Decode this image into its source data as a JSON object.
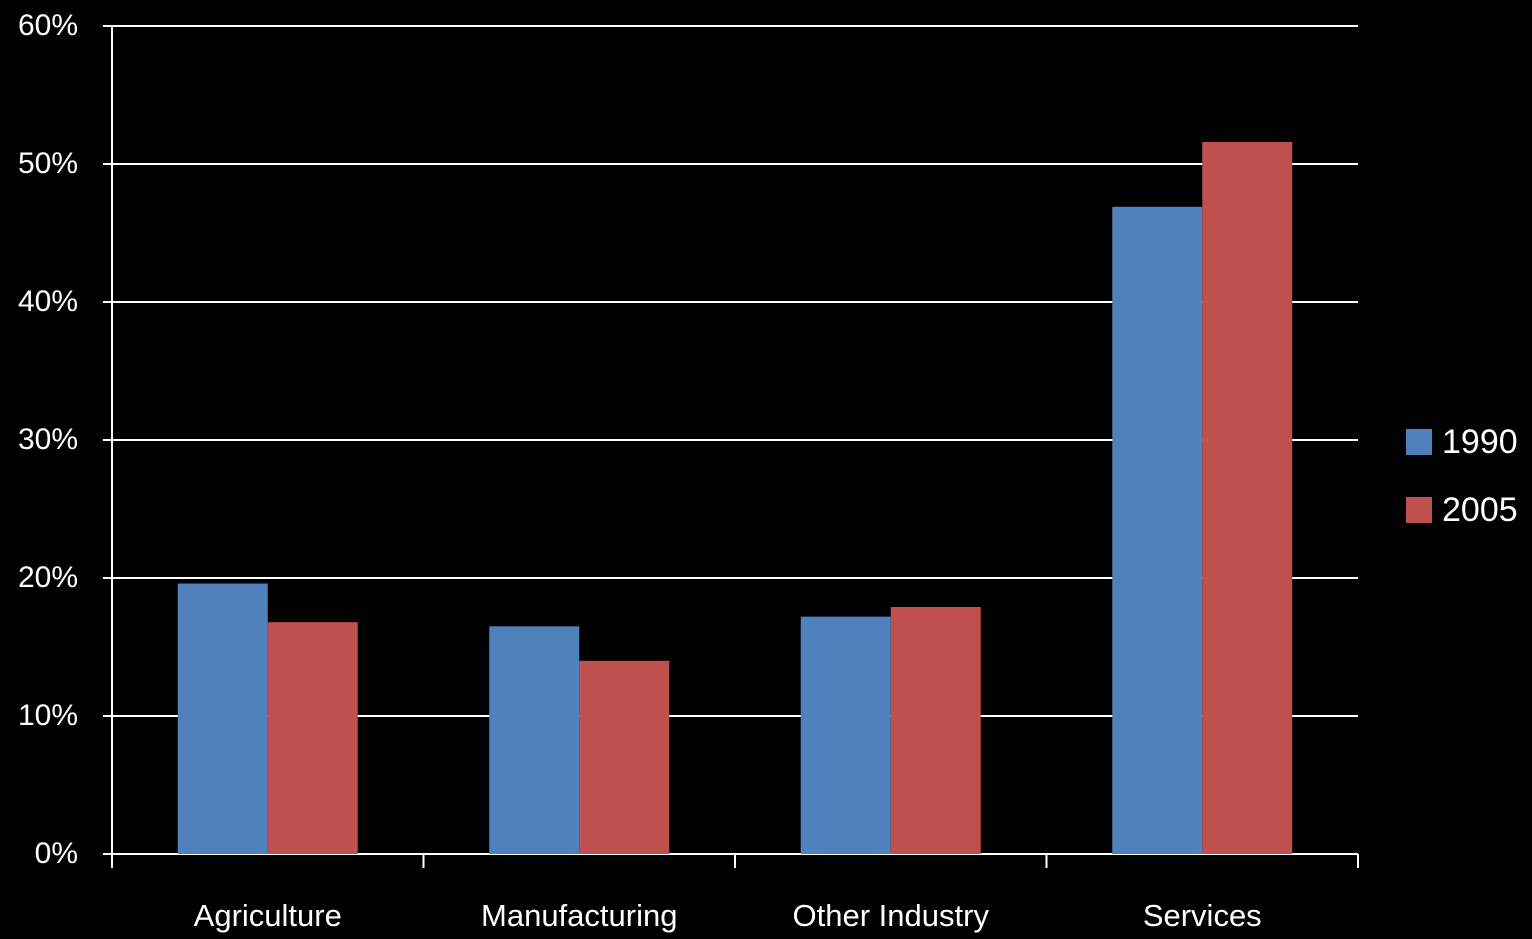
{
  "chart_data": {
    "type": "bar",
    "categories": [
      "Agriculture",
      "Manufacturing",
      "Other Industry",
      "Services"
    ],
    "series": [
      {
        "name": "1990",
        "color": "#4f81bd",
        "values": [
          19.6,
          16.5,
          17.2,
          46.9
        ]
      },
      {
        "name": "2005",
        "color": "#c0504d",
        "values": [
          16.8,
          14.0,
          17.9,
          51.6
        ]
      }
    ],
    "ylim": [
      0,
      60
    ],
    "ytick_values": [
      0,
      10,
      20,
      30,
      40,
      50,
      60
    ],
    "ytick_labels": [
      "0%",
      "10%",
      "20%",
      "30%",
      "40%",
      "50%",
      "60%"
    ],
    "grid": true,
    "legend_position": "right",
    "background_color": "#000000",
    "text_color": "#ffffff",
    "gridline_color": "#ffffff"
  }
}
